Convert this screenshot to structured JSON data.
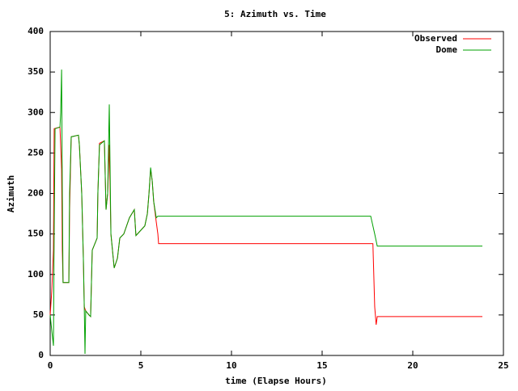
{
  "chart_data": {
    "type": "line",
    "title": "5: Azimuth vs. Time",
    "x_label": "time (Elapse Hours)",
    "y_label": "Azimuth",
    "xlim": [
      0,
      25
    ],
    "xticks": [
      0,
      5,
      10,
      15,
      20,
      25
    ],
    "ylim": [
      0,
      400
    ],
    "yticks": [
      0,
      50,
      100,
      150,
      200,
      250,
      300,
      350,
      400
    ],
    "legend": "top-right",
    "series": [
      {
        "name": "Observed",
        "color": "#ff0000",
        "x": [
          0,
          0.09,
          0.18,
          0.22,
          0.54,
          0.63,
          0.67,
          0.71,
          1.03,
          1.07,
          1.16,
          1.56,
          1.61,
          1.74,
          1.83,
          1.88,
          1.96,
          2.14,
          2.23,
          2.32,
          2.59,
          2.63,
          2.72,
          2.99,
          3.08,
          3.17,
          3.26,
          3.35,
          3.53,
          3.71,
          3.84,
          4.06,
          4.37,
          4.64,
          4.73,
          5.22,
          5.36,
          5.45,
          5.54,
          5.63,
          5.71,
          5.85,
          5.94,
          5.98,
          17.8,
          17.9,
          17.98,
          18.04,
          23.84
        ],
        "values": [
          50,
          80,
          130,
          280,
          282,
          230,
          130,
          90,
          90,
          180,
          270,
          272,
          260,
          200,
          120,
          60,
          55,
          50,
          48,
          130,
          145,
          200,
          262,
          265,
          180,
          200,
          260,
          150,
          108,
          120,
          145,
          150,
          170,
          180,
          148,
          160,
          175,
          200,
          230,
          215,
          190,
          165,
          150,
          138,
          138,
          60,
          38,
          48,
          48
        ]
      },
      {
        "name": "Dome",
        "color": "#00a000",
        "x": [
          0,
          0.09,
          0.18,
          0.22,
          0.27,
          0.54,
          0.58,
          0.63,
          0.67,
          0.71,
          1.03,
          1.07,
          1.16,
          1.56,
          1.61,
          1.74,
          1.83,
          1.88,
          1.92,
          1.96,
          2.14,
          2.23,
          2.32,
          2.59,
          2.63,
          2.72,
          2.99,
          3.08,
          3.17,
          3.26,
          3.35,
          3.53,
          3.71,
          3.84,
          4.06,
          4.37,
          4.64,
          4.73,
          5.22,
          5.36,
          5.45,
          5.54,
          5.63,
          5.71,
          5.85,
          5.94,
          17.68,
          17.9,
          18.04,
          23.84
        ],
        "values": [
          50,
          30,
          12,
          150,
          280,
          282,
          300,
          353,
          200,
          90,
          90,
          200,
          270,
          272,
          260,
          200,
          120,
          60,
          2,
          55,
          50,
          48,
          130,
          145,
          200,
          260,
          265,
          180,
          200,
          310,
          150,
          108,
          120,
          145,
          150,
          170,
          180,
          148,
          160,
          175,
          200,
          232,
          215,
          190,
          170,
          172,
          172,
          150,
          135,
          135
        ]
      }
    ]
  }
}
